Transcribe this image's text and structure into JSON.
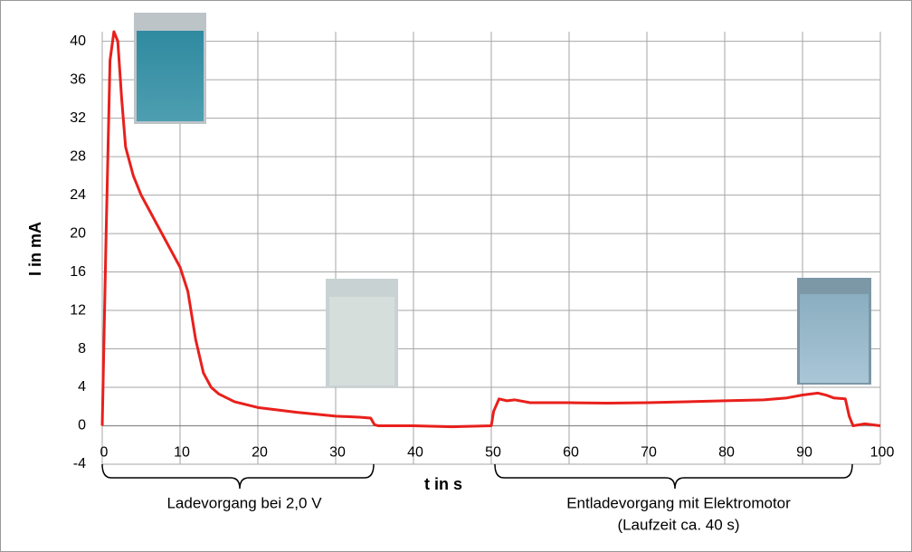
{
  "chart_data": {
    "type": "line",
    "x_label": "t in s",
    "y_label": "I in mA",
    "color": "#e8201c",
    "x": [
      0,
      0.5,
      1,
      1.5,
      2,
      2.5,
      3,
      4,
      5,
      6,
      7,
      8,
      9,
      10,
      11,
      12,
      13,
      14,
      15,
      17,
      20,
      25,
      30,
      33,
      34.5,
      35,
      35.5,
      40,
      45,
      50,
      50.3,
      51,
      52,
      53,
      55,
      60,
      65,
      70,
      75,
      80,
      85,
      88,
      90,
      92,
      93,
      94,
      95.5,
      96,
      96.5,
      98,
      100
    ],
    "values": [
      0,
      20,
      38,
      41,
      40,
      34,
      29,
      26,
      24,
      22.5,
      21,
      19.5,
      18,
      16.5,
      14,
      9,
      5.5,
      4,
      3.3,
      2.5,
      1.9,
      1.4,
      1.0,
      0.9,
      0.8,
      0.1,
      0,
      0,
      -0.1,
      0,
      1.5,
      2.8,
      2.6,
      2.7,
      2.4,
      2.4,
      2.35,
      2.4,
      2.5,
      2.6,
      2.7,
      2.9,
      3.2,
      3.4,
      3.2,
      2.9,
      2.8,
      1,
      0,
      0.2,
      0
    ],
    "xlim": [
      0,
      100
    ],
    "xticks": [
      0,
      10,
      20,
      30,
      40,
      50,
      60,
      70,
      80,
      90,
      100
    ],
    "ylim": [
      -4,
      41
    ],
    "yticks": [
      -4,
      0,
      4,
      8,
      12,
      16,
      20,
      24,
      28,
      32,
      36,
      40
    ],
    "grid": true,
    "annotations": [
      "Ladevorgang bei 2,0 V",
      "Entladevorgang mit Elektromotor",
      "(Laufzeit ca. 40 s)"
    ]
  }
}
